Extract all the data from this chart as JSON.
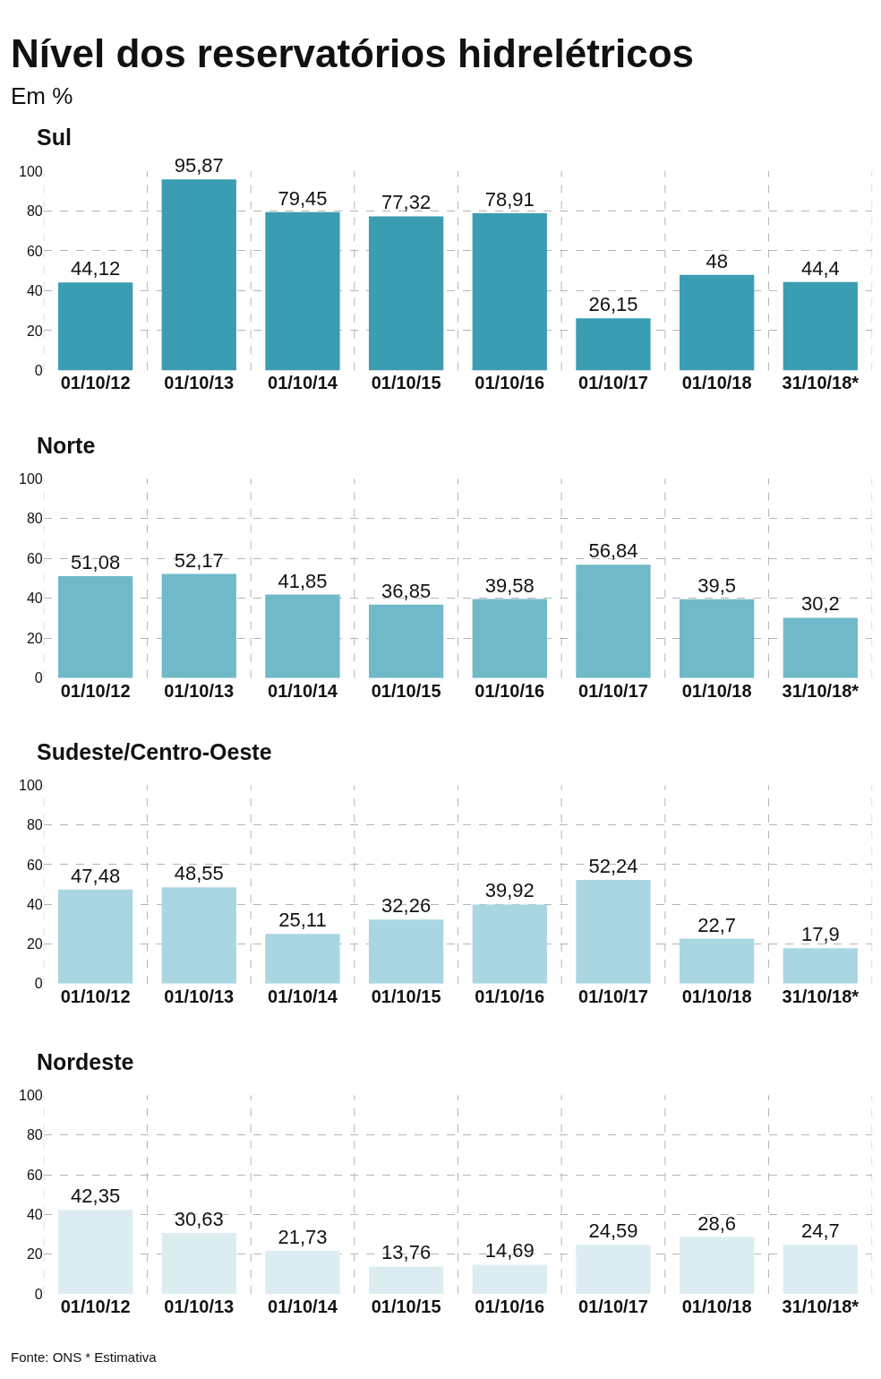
{
  "chart_data": [
    {
      "type": "bar",
      "title": "Nível dos reservatórios hidrelétricos",
      "subtitle": "Em %",
      "series": [
        {
          "name": "Sul",
          "color": "#3a9db1",
          "values": [
            44.12,
            95.87,
            79.45,
            77.32,
            78.91,
            26.15,
            48,
            44.4
          ],
          "value_labels": [
            "44,12",
            "95,87",
            "79,45",
            "77,32",
            "78,91",
            "26,15",
            "48",
            "44,4"
          ]
        }
      ],
      "categories": [
        "01/10/12",
        "01/10/13",
        "01/10/14",
        "01/10/15",
        "01/10/16",
        "01/10/17",
        "01/10/18",
        "31/10/18*"
      ],
      "ylim": [
        0,
        100
      ],
      "yticks": [
        0,
        20,
        40,
        60,
        80,
        100
      ],
      "grid": true
    },
    {
      "type": "bar",
      "series": [
        {
          "name": "Norte",
          "color": "#70b9c9",
          "values": [
            51.08,
            52.17,
            41.85,
            36.85,
            39.58,
            56.84,
            39.5,
            30.2
          ],
          "value_labels": [
            "51,08",
            "52,17",
            "41,85",
            "36,85",
            "39,58",
            "56,84",
            "39,5",
            "30,2"
          ]
        }
      ],
      "categories": [
        "01/10/12",
        "01/10/13",
        "01/10/14",
        "01/10/15",
        "01/10/16",
        "01/10/17",
        "01/10/18",
        "31/10/18*"
      ],
      "ylim": [
        0,
        100
      ],
      "yticks": [
        0,
        20,
        40,
        60,
        80,
        100
      ],
      "grid": true
    },
    {
      "type": "bar",
      "series": [
        {
          "name": "Sudeste/Centro-Oeste",
          "color": "#a9d6e1",
          "values": [
            47.48,
            48.55,
            25.11,
            32.26,
            39.92,
            52.24,
            22.7,
            17.9
          ],
          "value_labels": [
            "47,48",
            "48,55",
            "25,11",
            "32,26",
            "39,92",
            "52,24",
            "22,7",
            "17,9"
          ]
        }
      ],
      "categories": [
        "01/10/12",
        "01/10/13",
        "01/10/14",
        "01/10/15",
        "01/10/16",
        "01/10/17",
        "01/10/18",
        "31/10/18*"
      ],
      "ylim": [
        0,
        100
      ],
      "yticks": [
        0,
        20,
        40,
        60,
        80,
        100
      ],
      "grid": true
    },
    {
      "type": "bar",
      "series": [
        {
          "name": "Nordeste",
          "color": "#dcedf2",
          "values": [
            42.35,
            30.63,
            21.73,
            13.76,
            14.69,
            24.59,
            28.6,
            24.7
          ],
          "value_labels": [
            "42,35",
            "30,63",
            "21,73",
            "13,76",
            "14,69",
            "24,59",
            "28,6",
            "24,7"
          ]
        }
      ],
      "categories": [
        "01/10/12",
        "01/10/13",
        "01/10/14",
        "01/10/15",
        "01/10/16",
        "01/10/17",
        "01/10/18",
        "31/10/18*"
      ],
      "ylim": [
        0,
        100
      ],
      "yticks": [
        0,
        20,
        40,
        60,
        80,
        100
      ],
      "grid": true,
      "annotations": [
        "Fonte: ONS * Estimativa"
      ]
    }
  ]
}
